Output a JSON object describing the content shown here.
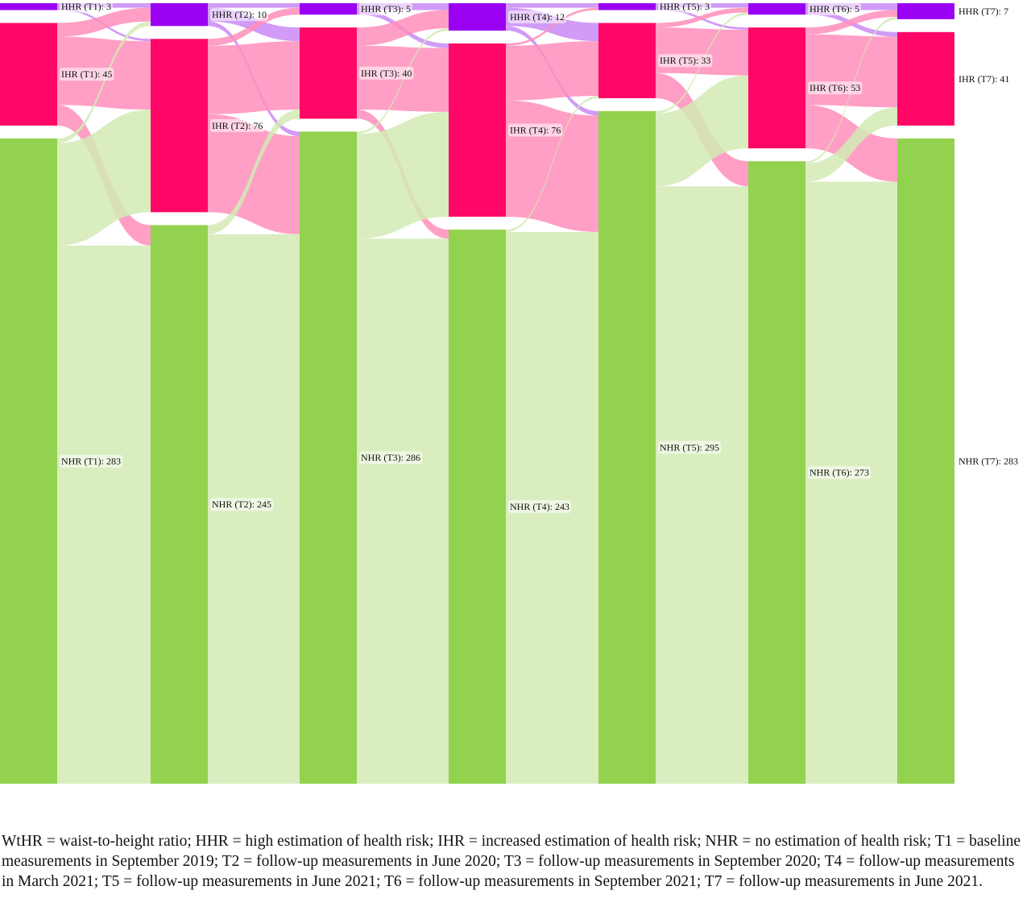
{
  "colors": {
    "HHR": "#9a00f2",
    "IHR": "#ff0766",
    "NHR": "#92d24f",
    "flow_HHR": "#c98af6",
    "flow_IHR": "#ff8ebb",
    "flow_NHR": "#d2eab4"
  },
  "diagram": {
    "type": "sankey",
    "timepoints": [
      "T1",
      "T2",
      "T3",
      "T4",
      "T5",
      "T6",
      "T7"
    ],
    "categories": [
      "HHR",
      "IHR",
      "NHR"
    ],
    "nodes": [
      {
        "label": "HHR (T1): 3",
        "t": 0,
        "cat": "HHR",
        "value": 3
      },
      {
        "label": "IHR (T1): 45",
        "t": 0,
        "cat": "IHR",
        "value": 45
      },
      {
        "label": "NHR (T1): 283",
        "t": 0,
        "cat": "NHR",
        "value": 283
      },
      {
        "label": "HHR (T2): 10",
        "t": 1,
        "cat": "HHR",
        "value": 10
      },
      {
        "label": "IHR (T2): 76",
        "t": 1,
        "cat": "IHR",
        "value": 76
      },
      {
        "label": "NHR (T2): 245",
        "t": 1,
        "cat": "NHR",
        "value": 245
      },
      {
        "label": "HHR (T3): 5",
        "t": 2,
        "cat": "HHR",
        "value": 5
      },
      {
        "label": "IHR (T3): 40",
        "t": 2,
        "cat": "IHR",
        "value": 40
      },
      {
        "label": "NHR (T3): 286",
        "t": 2,
        "cat": "NHR",
        "value": 286
      },
      {
        "label": "HHR (T4): 12",
        "t": 3,
        "cat": "HHR",
        "value": 12
      },
      {
        "label": "IHR (T4): 76",
        "t": 3,
        "cat": "IHR",
        "value": 76
      },
      {
        "label": "NHR (T4): 243",
        "t": 3,
        "cat": "NHR",
        "value": 243
      },
      {
        "label": "HHR (T5): 3",
        "t": 4,
        "cat": "HHR",
        "value": 3
      },
      {
        "label": "IHR (T5): 33",
        "t": 4,
        "cat": "IHR",
        "value": 33
      },
      {
        "label": "NHR (T5): 295",
        "t": 4,
        "cat": "NHR",
        "value": 295
      },
      {
        "label": "HHR (T6): 5",
        "t": 5,
        "cat": "HHR",
        "value": 5
      },
      {
        "label": "IHR (T6): 53",
        "t": 5,
        "cat": "IHR",
        "value": 53
      },
      {
        "label": "NHR (T6): 273",
        "t": 5,
        "cat": "NHR",
        "value": 273
      },
      {
        "label": "HHR (T7): 7",
        "t": 6,
        "cat": "HHR",
        "value": 7
      },
      {
        "label": "IHR (T7): 41",
        "t": 6,
        "cat": "IHR",
        "value": 41
      },
      {
        "label": "NHR (T7): 283",
        "t": 6,
        "cat": "NHR",
        "value": 283
      }
    ],
    "flows": [
      [
        [
          2,
          1,
          0
        ],
        [
          6,
          30,
          9
        ],
        [
          2,
          45,
          236
        ]
      ],
      [
        [
          2,
          6,
          2
        ],
        [
          3,
          30,
          43
        ],
        [
          0,
          4,
          241
        ]
      ],
      [
        [
          3,
          2,
          0
        ],
        [
          8,
          28,
          4
        ],
        [
          1,
          46,
          239
        ]
      ],
      [
        [
          2,
          8,
          2
        ],
        [
          1,
          24,
          51
        ],
        [
          0,
          1,
          242
        ]
      ],
      [
        [
          2,
          1,
          0
        ],
        [
          2,
          20,
          11
        ],
        [
          1,
          32,
          262
        ]
      ],
      [
        [
          3,
          2,
          0
        ],
        [
          3,
          31,
          19
        ],
        [
          1,
          8,
          264
        ]
      ]
    ]
  },
  "caption": "WtHR = waist-to-height ratio; HHR = high estimation of health risk; IHR = increased estimation of health risk; NHR = no estimation of health risk; T1 = baseline measurements in September 2019; T2 = follow-up measurements in June 2020; T3 = follow-up measurements in September 2020; T4 = follow-up measurements in March 2021; T5 = follow-up measurements in June 2021; T6 = follow-up measurements in September 2021; T7 = follow-up measurements in June 2021."
}
